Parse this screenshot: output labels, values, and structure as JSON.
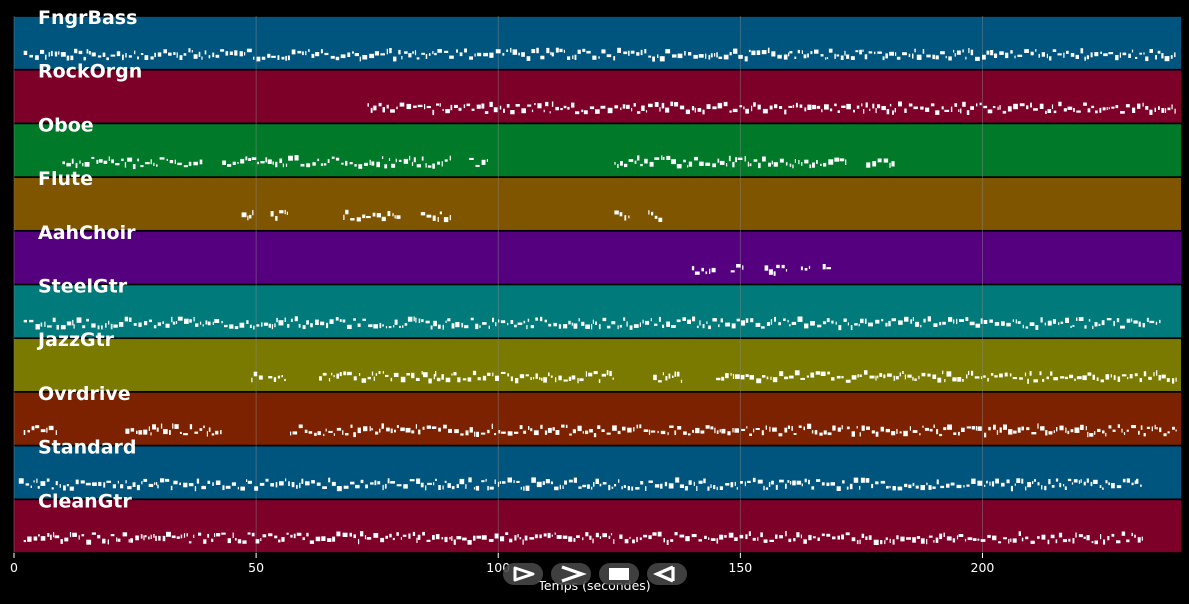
{
  "xaxis": {
    "label": "Temps (secondes)",
    "range": [
      0,
      241
    ],
    "ticks": [
      0,
      50,
      100,
      150,
      200
    ]
  },
  "colors": {
    "background": "#000000",
    "grid": "#8a8a8a",
    "notes": "#ffffff"
  },
  "tracks": [
    {
      "name": "FngrBass",
      "color": "#00557f",
      "segments": [
        [
          2,
          240
        ]
      ]
    },
    {
      "name": "RockOrgn",
      "color": "#7d0029",
      "segments": [
        [
          73,
          240
        ]
      ]
    },
    {
      "name": "Oboe",
      "color": "#007a28",
      "segments": [
        [
          10,
          39
        ],
        [
          43,
          90
        ],
        [
          94,
          98
        ],
        [
          124,
          172
        ],
        [
          176,
          182
        ]
      ]
    },
    {
      "name": "Flute",
      "color": "#7f5500",
      "segments": [
        [
          47,
          49.5
        ],
        [
          53,
          56.5
        ],
        [
          68,
          80
        ],
        [
          84,
          90
        ],
        [
          124,
          127
        ],
        [
          131,
          134
        ]
      ]
    },
    {
      "name": "AahChoir",
      "color": "#55007f",
      "segments": [
        [
          140,
          145
        ],
        [
          148,
          150.5
        ],
        [
          155,
          159.5
        ],
        [
          162.5,
          164.5
        ],
        [
          167,
          169
        ]
      ]
    },
    {
      "name": "SteelGtr",
      "color": "#007a7a",
      "segments": [
        [
          2,
          237
        ]
      ]
    },
    {
      "name": "JazzGtr",
      "color": "#7a7a00",
      "segments": [
        [
          49,
          51.5
        ],
        [
          52.5,
          56.5
        ],
        [
          63,
          124
        ],
        [
          132,
          138
        ],
        [
          145,
          240
        ]
      ]
    },
    {
      "name": "Ovrdrive",
      "color": "#7d2200",
      "segments": [
        [
          2,
          9
        ],
        [
          23,
          43
        ],
        [
          57,
          171
        ],
        [
          172,
          240
        ]
      ]
    },
    {
      "name": "Standard",
      "color": "#00557f",
      "segments": [
        [
          1,
          233
        ]
      ]
    },
    {
      "name": "CleanGtr",
      "color": "#7d0029",
      "segments": [
        [
          2,
          37
        ],
        [
          38,
          124
        ],
        [
          125,
          233
        ]
      ]
    }
  ],
  "controls": [
    {
      "name": "play-button",
      "icon": "play-icon"
    },
    {
      "name": "fast-forward-button",
      "icon": "fast-forward-icon"
    },
    {
      "name": "stop-button",
      "icon": "stop-icon"
    },
    {
      "name": "rewind-button",
      "icon": "rewind-icon"
    }
  ]
}
